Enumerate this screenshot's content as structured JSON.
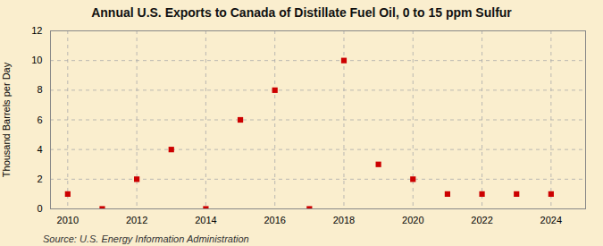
{
  "chart_data": {
    "type": "scatter",
    "title": "Annual U.S. Exports to Canada of Distillate Fuel Oil, 0 to 15 ppm Sulfur",
    "ylabel": "Thousand Barrels per Day",
    "source": "Source: U.S. Energy Information Administration",
    "x": [
      2010,
      2011,
      2012,
      2013,
      2014,
      2015,
      2016,
      2017,
      2018,
      2019,
      2020,
      2021,
      2022,
      2023,
      2024
    ],
    "values": [
      1,
      0,
      2,
      4,
      0,
      6,
      8,
      0,
      10,
      3,
      2,
      1,
      1,
      1,
      1
    ],
    "color": "#cc0000",
    "marker": "square",
    "xlim": [
      2009.5,
      2025.0
    ],
    "xticks": [
      2010,
      2012,
      2014,
      2016,
      2018,
      2020,
      2022,
      2024
    ],
    "ylim": [
      0,
      12
    ],
    "yticks": [
      0,
      2,
      4,
      6,
      8,
      10,
      12
    ],
    "grid": true
  }
}
